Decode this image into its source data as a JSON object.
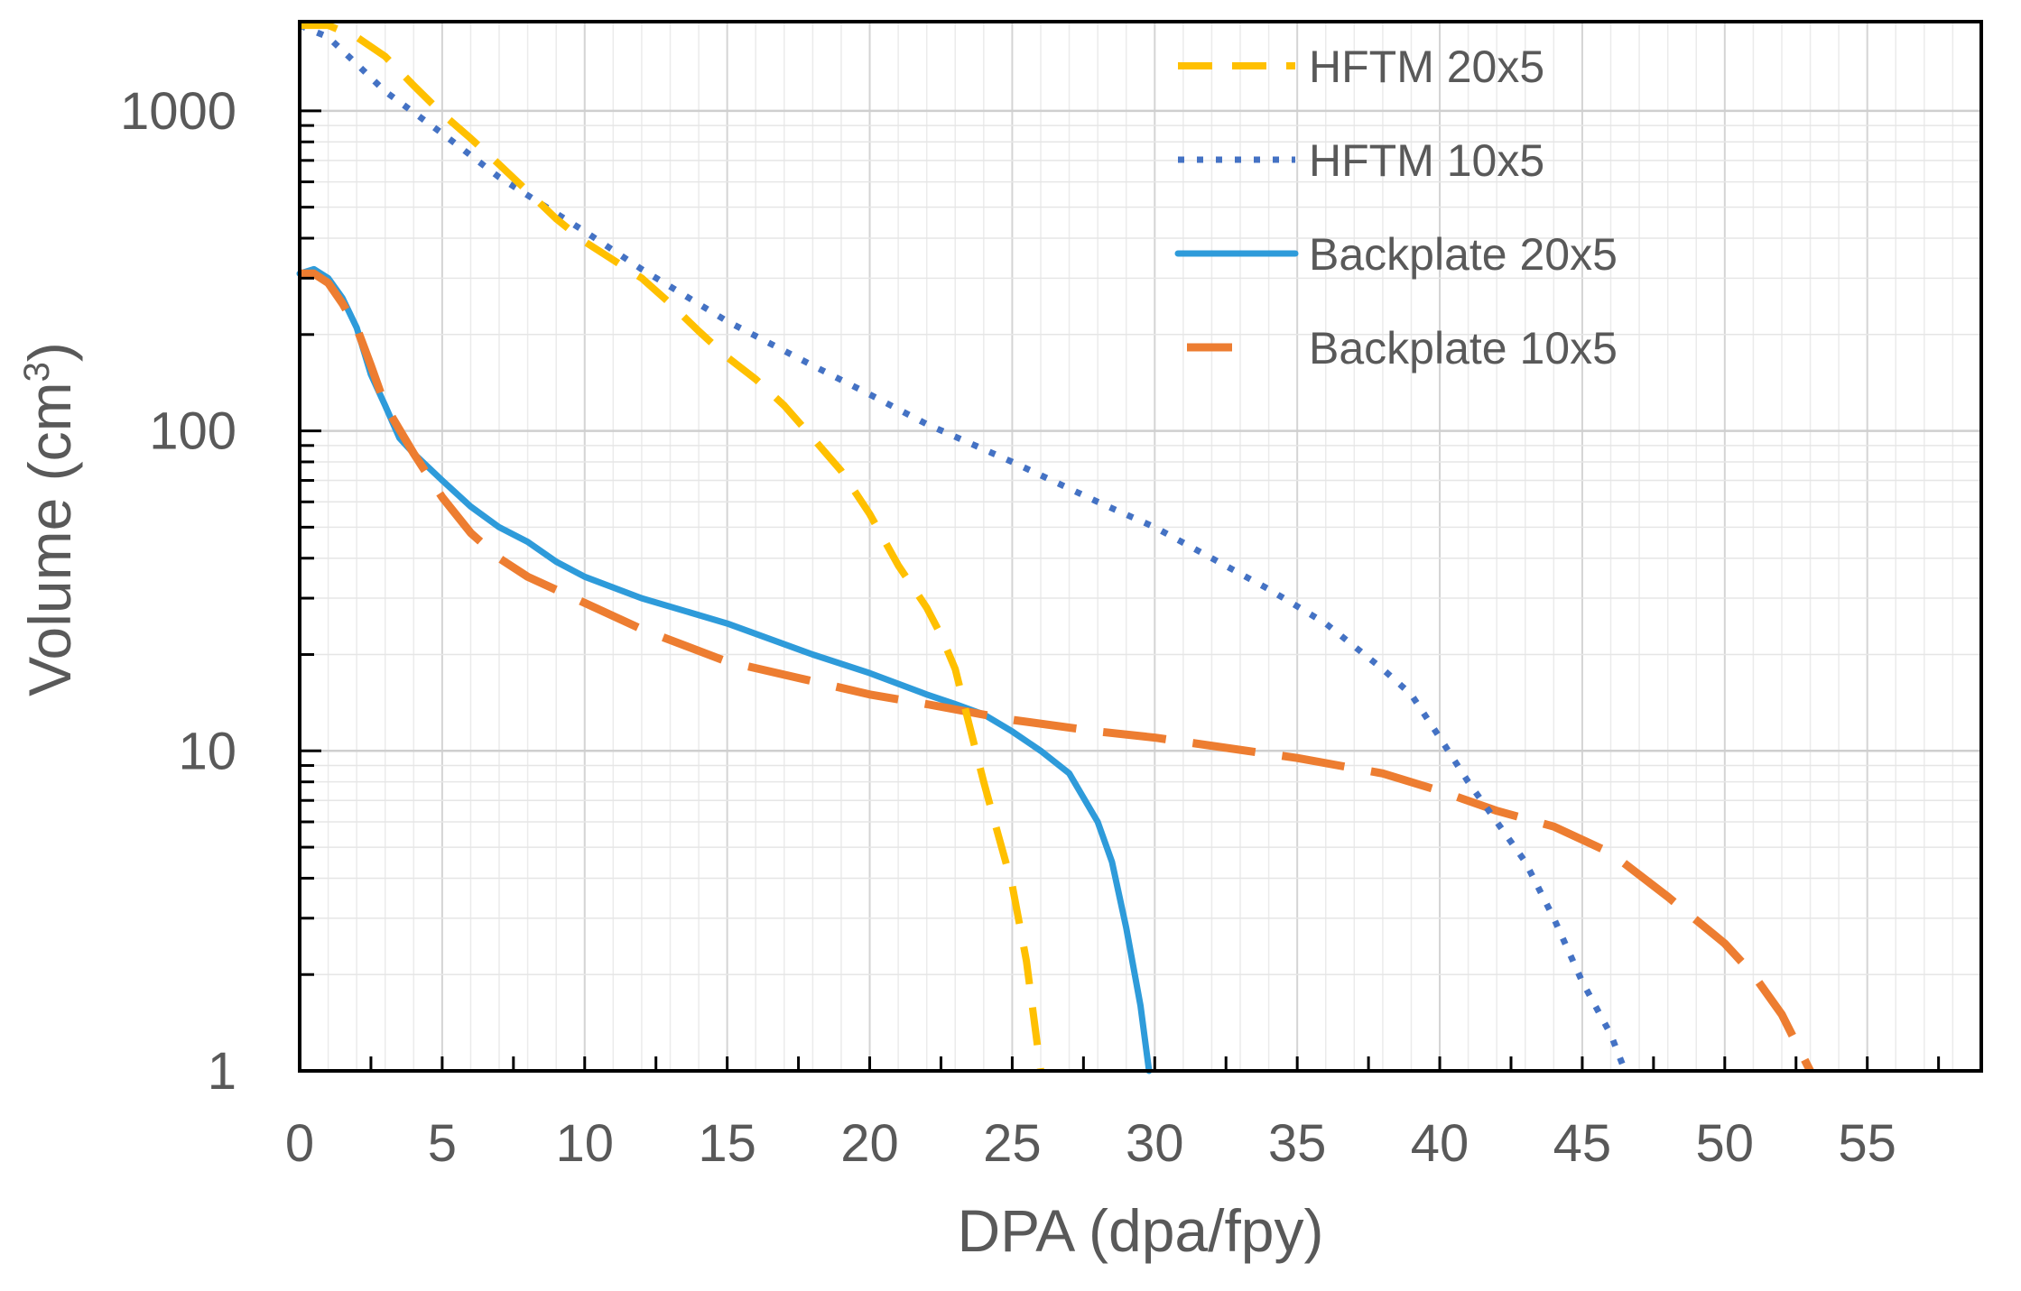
{
  "chart_data": {
    "type": "line",
    "title": "",
    "xlabel": "DPA (dpa/fpy)",
    "ylabel_main": "Volume (cm",
    "ylabel_sup": "3",
    "ylabel_close": ")",
    "yscale": "log",
    "xlim": [
      0,
      59
    ],
    "ylim": [
      1,
      1900
    ],
    "xticks": [
      0,
      5,
      10,
      15,
      20,
      25,
      30,
      35,
      40,
      45,
      50,
      55
    ],
    "xtick_labels": [
      "0",
      "5",
      "10",
      "15",
      "20",
      "25",
      "30",
      "35",
      "40",
      "45",
      "50",
      "55"
    ],
    "yticks": [
      1,
      10,
      100,
      1000
    ],
    "ytick_labels": [
      "1",
      "10",
      "100",
      "1000"
    ],
    "grid": true,
    "legend_position": "top-right",
    "series": [
      {
        "name": "HFTM 20x5",
        "color": "#FFC000",
        "style": "dashed",
        "points": [
          [
            0,
            1850
          ],
          [
            1,
            1850
          ],
          [
            2,
            1700
          ],
          [
            3,
            1480
          ],
          [
            4,
            1200
          ],
          [
            5,
            980
          ],
          [
            6,
            820
          ],
          [
            7,
            680
          ],
          [
            8,
            560
          ],
          [
            9,
            460
          ],
          [
            10,
            390
          ],
          [
            12,
            300
          ],
          [
            13,
            250
          ],
          [
            14,
            205
          ],
          [
            15,
            170
          ],
          [
            16,
            145
          ],
          [
            17,
            120
          ],
          [
            18,
            95
          ],
          [
            19,
            75
          ],
          [
            20,
            55
          ],
          [
            21,
            38
          ],
          [
            22,
            28
          ],
          [
            22.5,
            23
          ],
          [
            23,
            18
          ],
          [
            23.5,
            12
          ],
          [
            24,
            8
          ],
          [
            24.5,
            5.5
          ],
          [
            25,
            3.8
          ],
          [
            25.5,
            2.2
          ],
          [
            26,
            1.0
          ]
        ]
      },
      {
        "name": "HFTM 10x5",
        "color": "#4472C4",
        "style": "dotted",
        "points": [
          [
            0,
            1850
          ],
          [
            1,
            1700
          ],
          [
            2,
            1400
          ],
          [
            3,
            1150
          ],
          [
            5,
            850
          ],
          [
            7,
            620
          ],
          [
            10,
            420
          ],
          [
            12,
            320
          ],
          [
            15,
            220
          ],
          [
            18,
            160
          ],
          [
            20,
            130
          ],
          [
            22,
            105
          ],
          [
            25,
            80
          ],
          [
            28,
            60
          ],
          [
            30,
            50
          ],
          [
            32,
            40
          ],
          [
            34,
            32
          ],
          [
            36,
            25
          ],
          [
            38,
            18
          ],
          [
            39,
            15
          ],
          [
            40,
            11
          ],
          [
            41,
            8
          ],
          [
            42,
            6
          ],
          [
            43,
            4.5
          ],
          [
            44,
            3
          ],
          [
            45,
            1.9
          ],
          [
            46,
            1.3
          ],
          [
            46.5,
            1.0
          ]
        ]
      },
      {
        "name": "Backplate 20x5",
        "color": "#2E9BDA",
        "style": "solid",
        "points": [
          [
            0,
            310
          ],
          [
            0.5,
            320
          ],
          [
            1,
            300
          ],
          [
            1.5,
            260
          ],
          [
            2,
            210
          ],
          [
            2.5,
            150
          ],
          [
            3,
            120
          ],
          [
            3.5,
            95
          ],
          [
            4,
            85
          ],
          [
            5,
            70
          ],
          [
            6,
            58
          ],
          [
            7,
            50
          ],
          [
            8,
            45
          ],
          [
            9,
            39
          ],
          [
            10,
            35
          ],
          [
            12,
            30
          ],
          [
            15,
            25
          ],
          [
            18,
            20
          ],
          [
            20,
            17.5
          ],
          [
            22,
            15
          ],
          [
            23,
            14
          ],
          [
            24,
            13
          ],
          [
            25,
            11.5
          ],
          [
            26,
            10
          ],
          [
            27,
            8.5
          ],
          [
            28,
            6
          ],
          [
            28.5,
            4.5
          ],
          [
            29,
            2.8
          ],
          [
            29.5,
            1.6
          ],
          [
            29.8,
            1.0
          ]
        ]
      },
      {
        "name": "Backplate 10x5",
        "color": "#ED7D31",
        "style": "long-dash",
        "points": [
          [
            0,
            310
          ],
          [
            0.5,
            310
          ],
          [
            1,
            290
          ],
          [
            1.5,
            250
          ],
          [
            2,
            210
          ],
          [
            2.5,
            160
          ],
          [
            3,
            120
          ],
          [
            4,
            85
          ],
          [
            5,
            62
          ],
          [
            6,
            48
          ],
          [
            7,
            40
          ],
          [
            8,
            35
          ],
          [
            10,
            29
          ],
          [
            12,
            24
          ],
          [
            15,
            19
          ],
          [
            18,
            16.5
          ],
          [
            20,
            15
          ],
          [
            22,
            14
          ],
          [
            25,
            12.5
          ],
          [
            28,
            11.5
          ],
          [
            30,
            11
          ],
          [
            35,
            9.5
          ],
          [
            38,
            8.5
          ],
          [
            40,
            7.5
          ],
          [
            42,
            6.5
          ],
          [
            44,
            5.8
          ],
          [
            46,
            4.8
          ],
          [
            48,
            3.5
          ],
          [
            50,
            2.5
          ],
          [
            51,
            2
          ],
          [
            52,
            1.5
          ],
          [
            53,
            1.0
          ]
        ]
      }
    ]
  }
}
